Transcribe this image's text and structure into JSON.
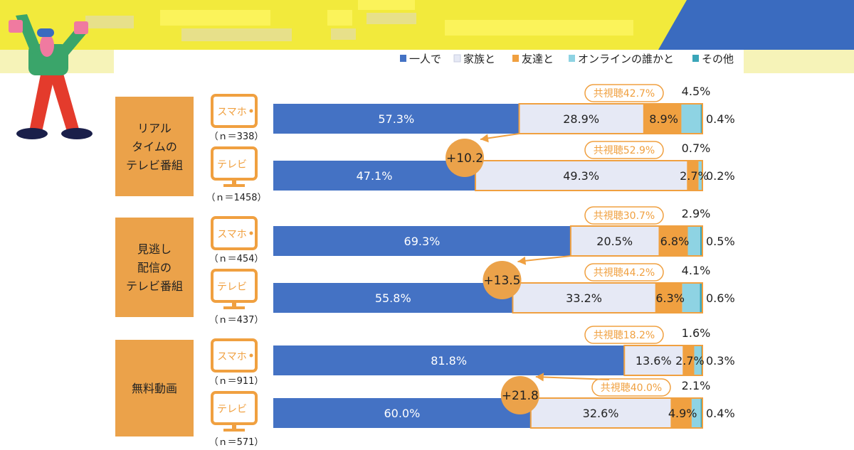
{
  "chart_data": {
    "type": "bar",
    "orientation": "horizontal",
    "stacked": true,
    "xlim": [
      0,
      100
    ],
    "legend": [
      {
        "name": "一人で",
        "color": "#4472c4"
      },
      {
        "name": "家族と",
        "color": "#e6e9f5"
      },
      {
        "name": "友達と",
        "color": "#f0a040"
      },
      {
        "name": "オンラインの誰かと",
        "color": "#8ed3e3"
      },
      {
        "name": "その他",
        "color": "#3aa6b9"
      }
    ],
    "groups": [
      {
        "label": [
          "リアル",
          "タイムの",
          "テレビ番組"
        ],
        "diff_label": "+10.2",
        "rows": [
          {
            "device": "スマホ",
            "n_label": "（ｎ＝338）",
            "values": [
              57.3,
              28.9,
              8.9,
              4.5,
              0.4
            ],
            "labels": [
              "57.3%",
              "28.9%",
              "8.9%",
              "4.5%",
              "0.4%"
            ],
            "joint_label": "共視聴42.7%"
          },
          {
            "device": "テレビ",
            "n_label": "（ｎ＝1458）",
            "values": [
              47.1,
              49.3,
              2.7,
              0.7,
              0.2
            ],
            "labels": [
              "47.1%",
              "49.3%",
              "2.7%",
              "0.7%",
              "0.2%"
            ],
            "joint_label": "共視聴52.9%"
          }
        ]
      },
      {
        "label": [
          "見逃し",
          "配信の",
          "テレビ番組"
        ],
        "diff_label": "+13.5",
        "rows": [
          {
            "device": "スマホ",
            "n_label": "（ｎ＝454）",
            "values": [
              69.3,
              20.5,
              6.8,
              2.9,
              0.5
            ],
            "labels": [
              "69.3%",
              "20.5%",
              "6.8%",
              "2.9%",
              "0.5%"
            ],
            "joint_label": "共視聴30.7%"
          },
          {
            "device": "テレビ",
            "n_label": "（ｎ＝437）",
            "values": [
              55.8,
              33.2,
              6.3,
              4.1,
              0.6
            ],
            "labels": [
              "55.8%",
              "33.2%",
              "6.3%",
              "4.1%",
              "0.6%"
            ],
            "joint_label": "共視聴44.2%"
          }
        ]
      },
      {
        "label": [
          "無料動画"
        ],
        "diff_label": "+21.8",
        "rows": [
          {
            "device": "スマホ",
            "n_label": "（ｎ＝911）",
            "values": [
              81.8,
              13.6,
              2.7,
              1.6,
              0.3
            ],
            "labels": [
              "81.8%",
              "13.6%",
              "2.7%",
              "1.6%",
              "0.3%"
            ],
            "joint_label": "共視聴18.2%"
          },
          {
            "device": "テレビ",
            "n_label": "（ｎ＝571）",
            "values": [
              60.0,
              32.6,
              4.9,
              2.1,
              0.4
            ],
            "labels": [
              "60.0%",
              "32.6%",
              "4.9%",
              "2.1%",
              "0.4%"
            ],
            "joint_label": "共視聴40.0%"
          }
        ]
      }
    ]
  },
  "colors": {
    "banner_yellow": "#f2ea3c",
    "banner_blue": "#3a6bbf",
    "pale_yellow": "#f6f3b8",
    "group_box": "#eba24a",
    "device_border": "#f0a040",
    "diff_circle": "#eba24a",
    "text_dark": "#222222",
    "white": "#ffffff"
  }
}
